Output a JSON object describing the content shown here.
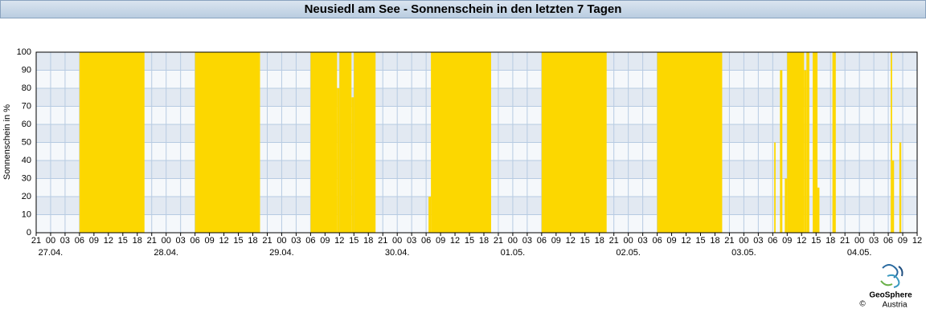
{
  "chart_data": {
    "type": "step",
    "title": "Neusiedl am See - Sonnenschein in den letzten 7 Tagen",
    "y_label": "Sonnenschein in %",
    "color": "#fcd700",
    "grid": true,
    "ylim": [
      0,
      100
    ],
    "yticks": [
      0,
      10,
      20,
      30,
      40,
      50,
      60,
      70,
      80,
      90,
      100
    ],
    "xlim": [
      -3,
      180
    ],
    "xticks": [
      {
        "value": -3,
        "label": "21"
      },
      {
        "value": 0,
        "label": "00"
      },
      {
        "value": 3,
        "label": "03"
      },
      {
        "value": 6,
        "label": "06"
      },
      {
        "value": 9,
        "label": "09"
      },
      12,
      15,
      18,
      21,
      {
        "value": 24,
        "label": "00"
      },
      {
        "value": 27,
        "label": "03"
      },
      {
        "value": 30,
        "label": "06"
      },
      {
        "value": 33,
        "label": "09"
      },
      {
        "value": 36,
        "label": "12"
      },
      {
        "value": 39,
        "label": "15"
      },
      {
        "value": 42,
        "label": "18"
      },
      {
        "value": 45,
        "label": "21"
      },
      {
        "value": 48,
        "label": "00"
      },
      {
        "value": 51,
        "label": "03"
      },
      {
        "value": 54,
        "label": "06"
      },
      {
        "value": 57,
        "label": "09"
      },
      {
        "value": 60,
        "label": "12"
      },
      {
        "value": 63,
        "label": "15"
      },
      {
        "value": 66,
        "label": "18"
      },
      {
        "value": 69,
        "label": "21"
      },
      {
        "value": 72,
        "label": "00"
      },
      {
        "value": 75,
        "label": "03"
      },
      {
        "value": 78,
        "label": "06"
      },
      {
        "value": 81,
        "label": "09"
      },
      {
        "value": 84,
        "label": "12"
      },
      {
        "value": 87,
        "label": "15"
      },
      {
        "value": 90,
        "label": "18"
      },
      {
        "value": 93,
        "label": "21"
      },
      {
        "value": 96,
        "label": "00"
      },
      {
        "value": 99,
        "label": "03"
      },
      {
        "value": 102,
        "label": "06"
      },
      {
        "value": 105,
        "label": "09"
      },
      {
        "value": 108,
        "label": "12"
      },
      {
        "value": 111,
        "label": "15"
      },
      {
        "value": 114,
        "label": "18"
      },
      {
        "value": 117,
        "label": "21"
      },
      {
        "value": 120,
        "label": "00"
      },
      {
        "value": 123,
        "label": "03"
      },
      {
        "value": 126,
        "label": "06"
      },
      {
        "value": 129,
        "label": "09"
      },
      {
        "value": 132,
        "label": "12"
      },
      {
        "value": 135,
        "label": "15"
      },
      {
        "value": 138,
        "label": "18"
      },
      {
        "value": 141,
        "label": "21"
      },
      {
        "value": 144,
        "label": "00"
      },
      {
        "value": 147,
        "label": "03"
      },
      {
        "value": 150,
        "label": "06"
      },
      {
        "value": 153,
        "label": "09"
      },
      {
        "value": 156,
        "label": "12"
      },
      {
        "value": 159,
        "label": "15"
      },
      {
        "value": 162,
        "label": "18"
      },
      {
        "value": 165,
        "label": "21"
      },
      {
        "value": 168,
        "label": "00"
      },
      {
        "value": 171,
        "label": "03"
      },
      {
        "value": 174,
        "label": "06"
      },
      {
        "value": 177,
        "label": "09"
      },
      {
        "value": 180,
        "label": "12"
      }
    ],
    "date_labels": [
      {
        "value": 0,
        "label": "27.04."
      },
      {
        "value": 24,
        "label": "28.04."
      },
      {
        "value": 48,
        "label": "29.04."
      },
      {
        "value": 72,
        "label": "30.04."
      },
      {
        "value": 96,
        "label": "01.05."
      },
      {
        "value": 120,
        "label": "02.05."
      },
      {
        "value": 144,
        "label": "03.05."
      },
      {
        "value": 168,
        "label": "04.05."
      }
    ],
    "x": [
      -3,
      6,
      19.5,
      30,
      43.5,
      54,
      59.5,
      60,
      62.5,
      63,
      67.5,
      78.5,
      79,
      91.5,
      102,
      115.5,
      126,
      139.5,
      150.3,
      150.6,
      151.5,
      152,
      152.5,
      153,
      156.5,
      157,
      157.6,
      158.3,
      159.3,
      159.7,
      162.4,
      163.1,
      174.5,
      174.8,
      175.2,
      176.3,
      176.7
    ],
    "values": [
      0,
      100,
      0,
      100,
      0,
      100,
      80,
      100,
      75,
      100,
      0,
      20,
      100,
      0,
      100,
      0,
      100,
      0,
      50,
      0,
      90,
      0,
      30,
      100,
      90,
      100,
      0,
      100,
      25,
      0,
      100,
      0,
      100,
      40,
      0,
      50,
      0
    ]
  },
  "branding": {
    "name": "GeoSphere",
    "sub": "Austria",
    "copyright": "©"
  }
}
